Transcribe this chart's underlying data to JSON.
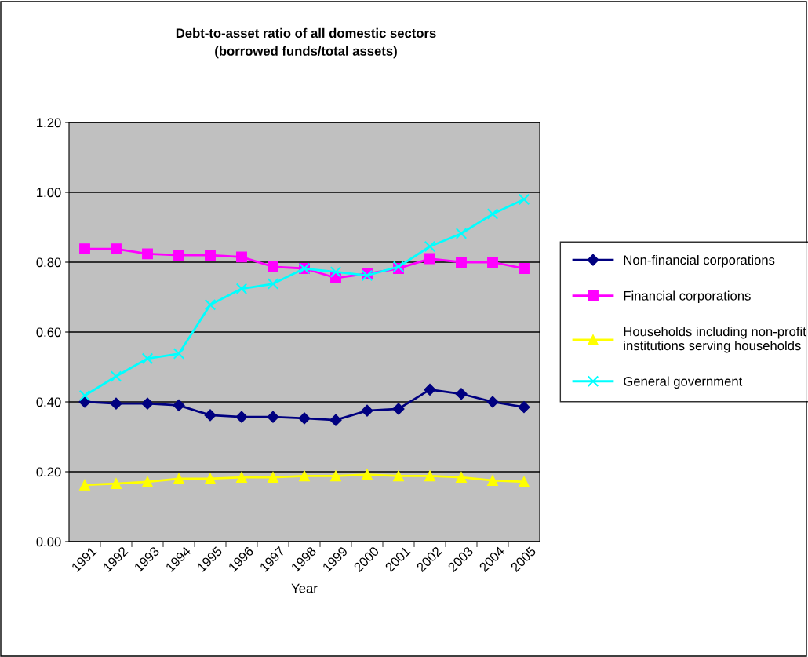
{
  "chart_data": {
    "type": "line",
    "title": "Debt-to-asset ratio of all domestic sectors\n(borrowed funds/total assets)",
    "xlabel": "Year",
    "categories": [
      "1991",
      "1992",
      "1993",
      "1994",
      "1995",
      "1996",
      "1997",
      "1998",
      "1999",
      "2000",
      "2001",
      "2002",
      "2003",
      "2004",
      "2005"
    ],
    "series": [
      {
        "name": "Non-financial corporations",
        "color": "#000080",
        "marker": "diamond",
        "values": [
          0.4,
          0.395,
          0.395,
          0.39,
          0.362,
          0.357,
          0.357,
          0.353,
          0.348,
          0.375,
          0.38,
          0.435,
          0.423,
          0.4,
          0.385
        ]
      },
      {
        "name": "Financial corporations",
        "color": "#ff00ff",
        "marker": "square",
        "values": [
          0.838,
          0.838,
          0.824,
          0.82,
          0.82,
          0.815,
          0.787,
          0.782,
          0.755,
          0.767,
          0.782,
          0.81,
          0.8,
          0.8,
          0.782
        ]
      },
      {
        "name": "Households including non-profit\ninstitutions serving households",
        "color": "#ffff00",
        "marker": "triangle",
        "values": [
          0.162,
          0.166,
          0.171,
          0.18,
          0.18,
          0.184,
          0.184,
          0.188,
          0.188,
          0.192,
          0.188,
          0.188,
          0.184,
          0.175,
          0.171
        ]
      },
      {
        "name": "General government",
        "color": "#00ffff",
        "marker": "cross",
        "values": [
          0.418,
          0.473,
          0.524,
          0.538,
          0.678,
          0.724,
          0.738,
          0.782,
          0.772,
          0.762,
          0.787,
          0.845,
          0.882,
          0.938,
          0.98
        ]
      }
    ],
    "ylim": [
      0,
      1.2
    ],
    "yticks": [
      {
        "value": 0,
        "label": "0.00"
      },
      {
        "value": 0.2,
        "label": "0.20"
      },
      {
        "value": 0.4,
        "label": "0.40"
      },
      {
        "value": 0.6,
        "label": "0.60"
      },
      {
        "value": 0.8,
        "label": "0.80"
      },
      {
        "value": 1.0,
        "label": "1.00"
      },
      {
        "value": 1.2,
        "label": "1.20"
      }
    ],
    "grid": "y",
    "legend": "right",
    "line_style": "solid"
  }
}
